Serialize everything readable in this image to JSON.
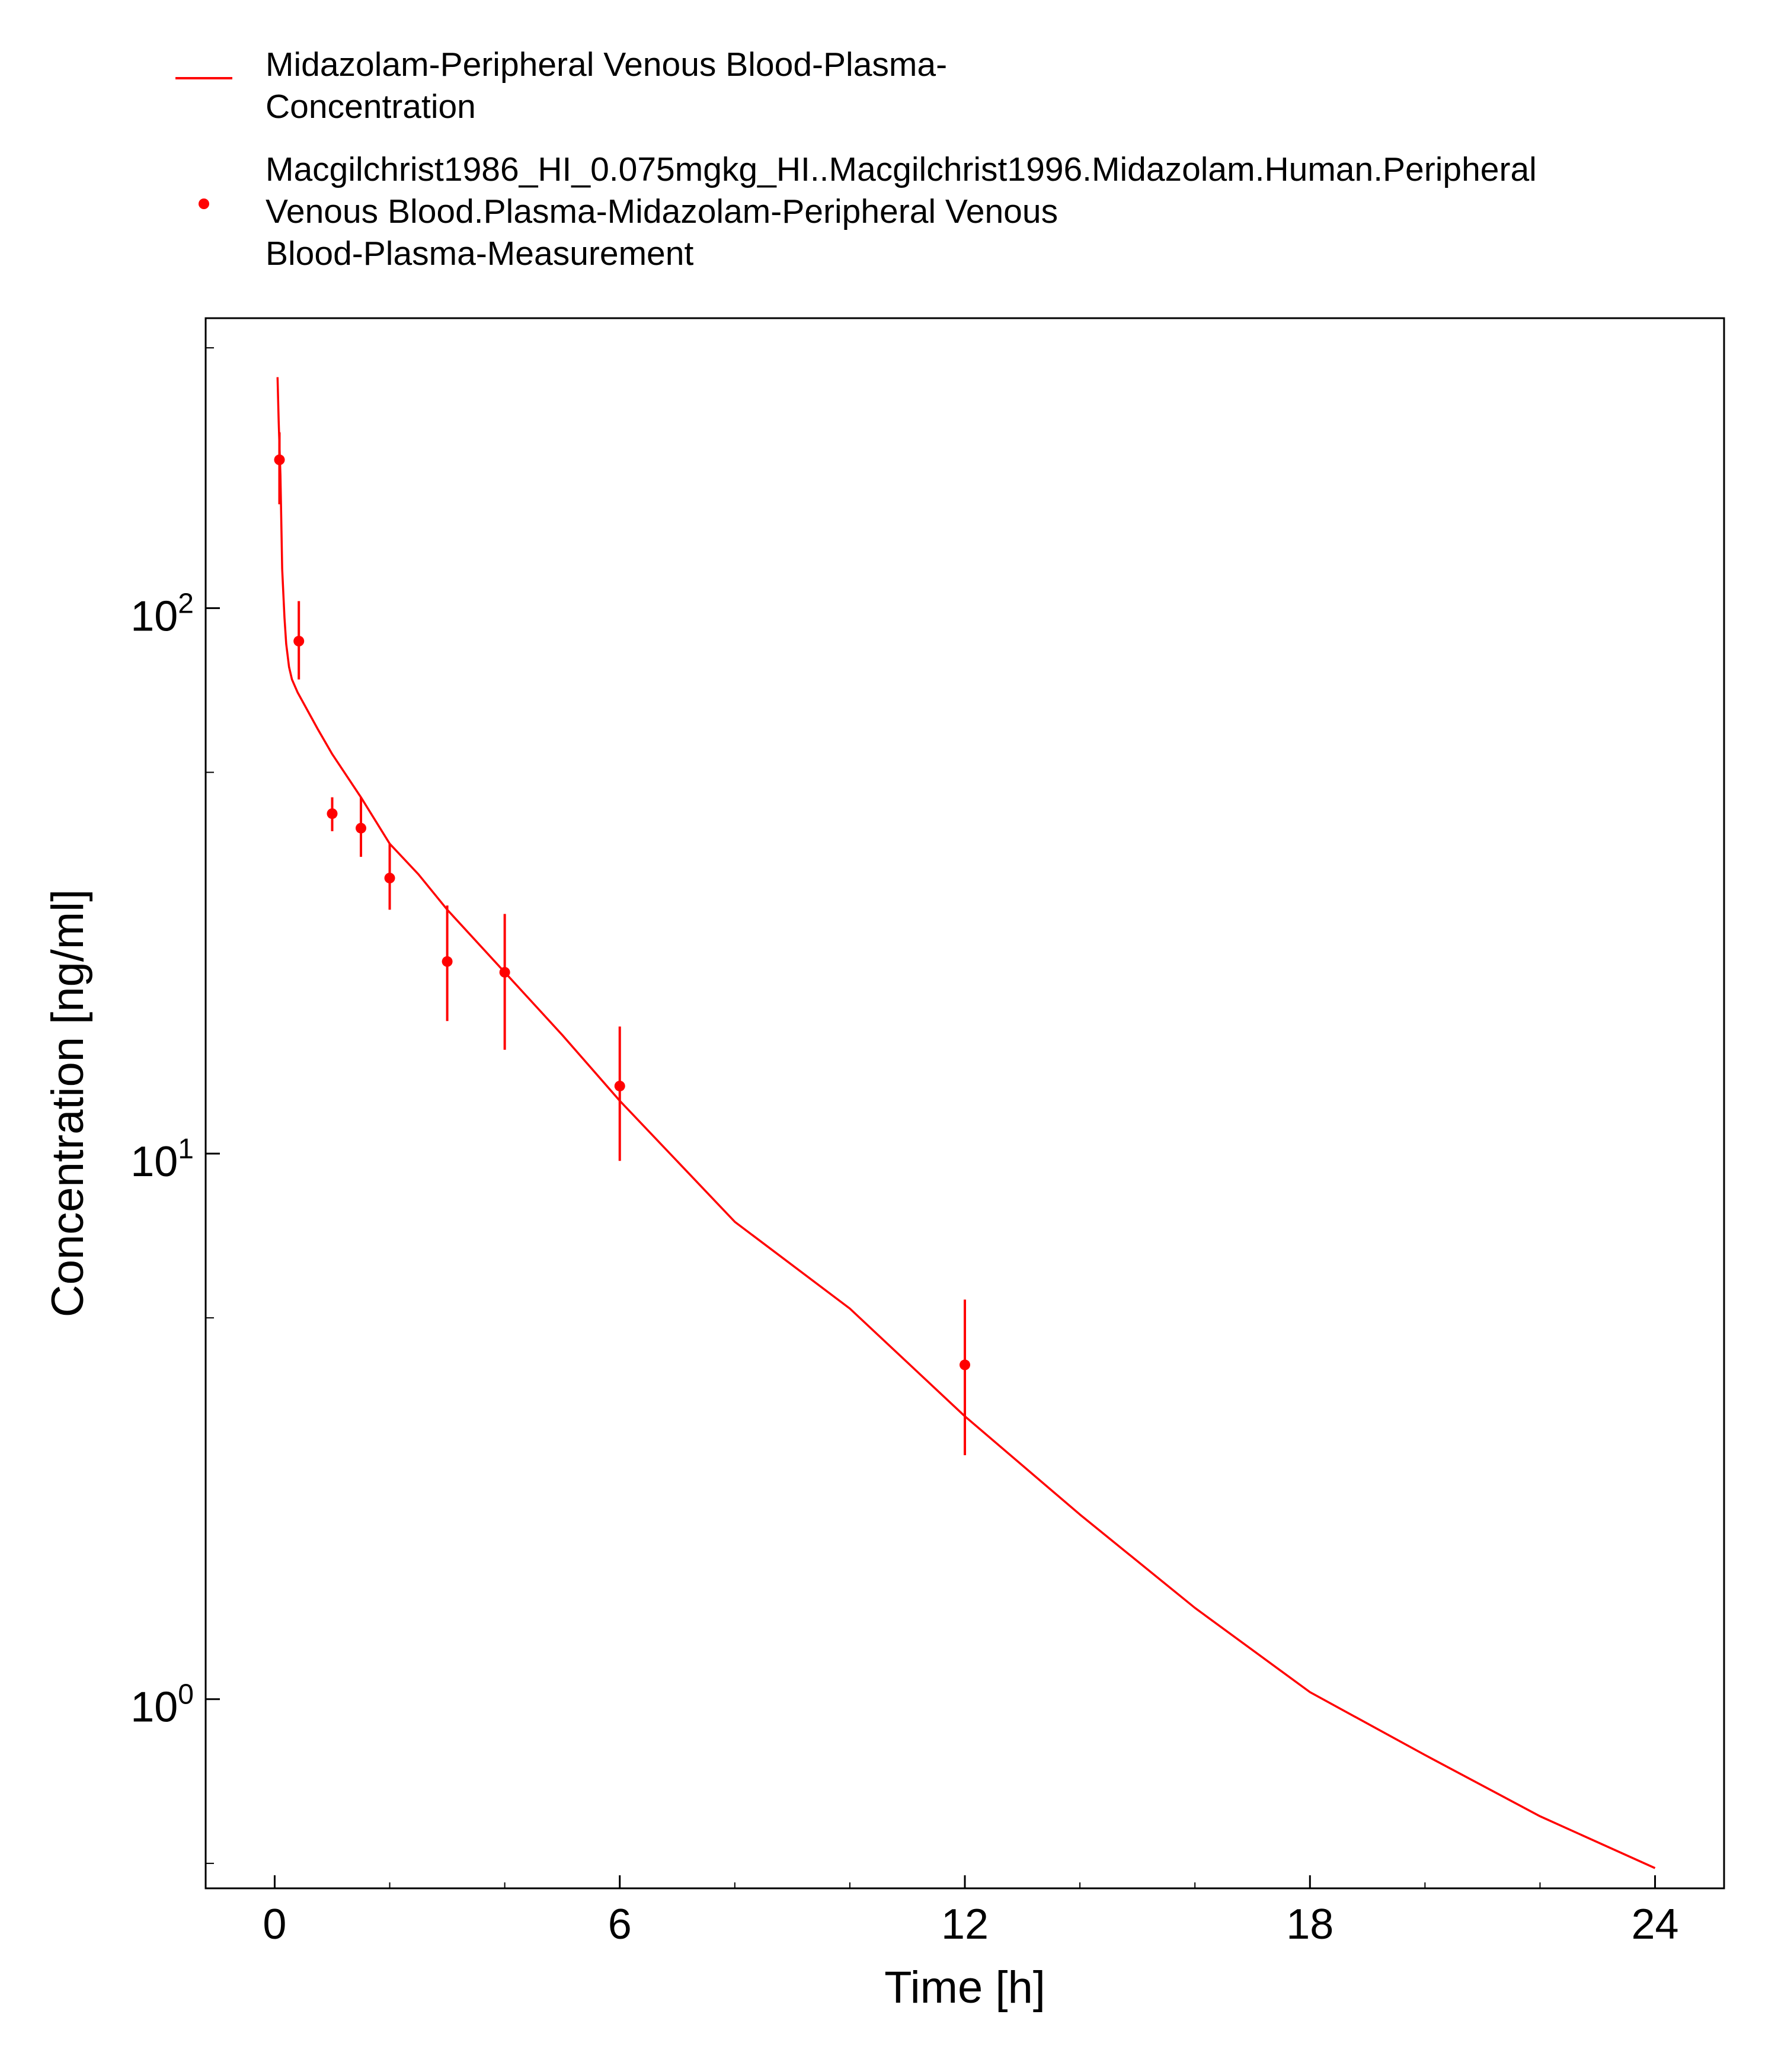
{
  "chart_data": {
    "type": "scatter",
    "title": "",
    "xlabel": "Time [h]",
    "ylabel": "Concentration [ng/ml]",
    "x_scale": "linear",
    "y_scale": "log",
    "xlim": [
      -1.2,
      25.2
    ],
    "ylim": [
      0.45,
      340
    ],
    "x_ticks": [
      0,
      6,
      12,
      18,
      24
    ],
    "x_tick_labels": [
      "0",
      "6",
      "12",
      "18",
      "24"
    ],
    "x_minor_step": 2,
    "y_ticks": [
      1,
      10,
      100
    ],
    "y_tick_labels": [
      {
        "base": "10",
        "exp": "0"
      },
      {
        "base": "10",
        "exp": "1"
      },
      {
        "base": "10",
        "exp": "2"
      }
    ],
    "y_minor_ticks": [
      0.5,
      5,
      50,
      300
    ],
    "grid": false,
    "legend_position": "top",
    "colors": {
      "series": "#ff0000",
      "axes": "#000000"
    },
    "series": [
      {
        "name": "Midazolam-Peripheral Venous Blood-Plasma-Concentration",
        "legend_lines": [
          "Midazolam-Peripheral Venous Blood-Plasma-",
          "Concentration"
        ],
        "style": "line",
        "x": [
          0.05,
          0.07,
          0.1,
          0.13,
          0.17,
          0.2,
          0.25,
          0.3,
          0.4,
          0.5,
          0.75,
          1.0,
          1.5,
          2.0,
          2.5,
          3.0,
          4.0,
          5.0,
          6.0,
          8.0,
          10.0,
          12.0,
          14.0,
          16.0,
          18.0,
          20.0,
          22.0,
          24.0
        ],
        "y": [
          265,
          220,
          175,
          118,
          96,
          86,
          78,
          74,
          70,
          67,
          60,
          54,
          45,
          37,
          32.5,
          28,
          21.5,
          16.5,
          12.5,
          7.5,
          5.2,
          3.3,
          2.18,
          1.47,
          1.03,
          0.79,
          0.61,
          0.49
        ]
      },
      {
        "name": "Macgilchrist1986_HI_0.075mgkg_HI..Macgilchrist1996.Midazolam.Human.Peripheral Venous Blood.Plasma-Midazolam-Peripheral Venous Blood-Plasma-Measurement",
        "legend_lines": [
          "Macgilchrist1986_HI_0.075mgkg_HI..Macgilchrist1996.Midazolam.Human.Peripheral",
          "Venous Blood.Plasma-Midazolam-Peripheral Venous",
          "Blood-Plasma-Measurement"
        ],
        "style": "points_with_error_bars",
        "x": [
          0.083,
          0.42,
          1.0,
          1.5,
          2.0,
          3.0,
          4.0,
          6.0,
          12.0
        ],
        "y": [
          187,
          87,
          42,
          39.5,
          32,
          22.5,
          21.5,
          13.3,
          4.1
        ],
        "y_low": [
          155,
          74,
          39,
          35,
          28,
          17.5,
          15.5,
          9.7,
          2.8
        ],
        "y_high": [
          210,
          103,
          45,
          45,
          37,
          28.5,
          27.5,
          17.1,
          5.4
        ]
      }
    ]
  }
}
